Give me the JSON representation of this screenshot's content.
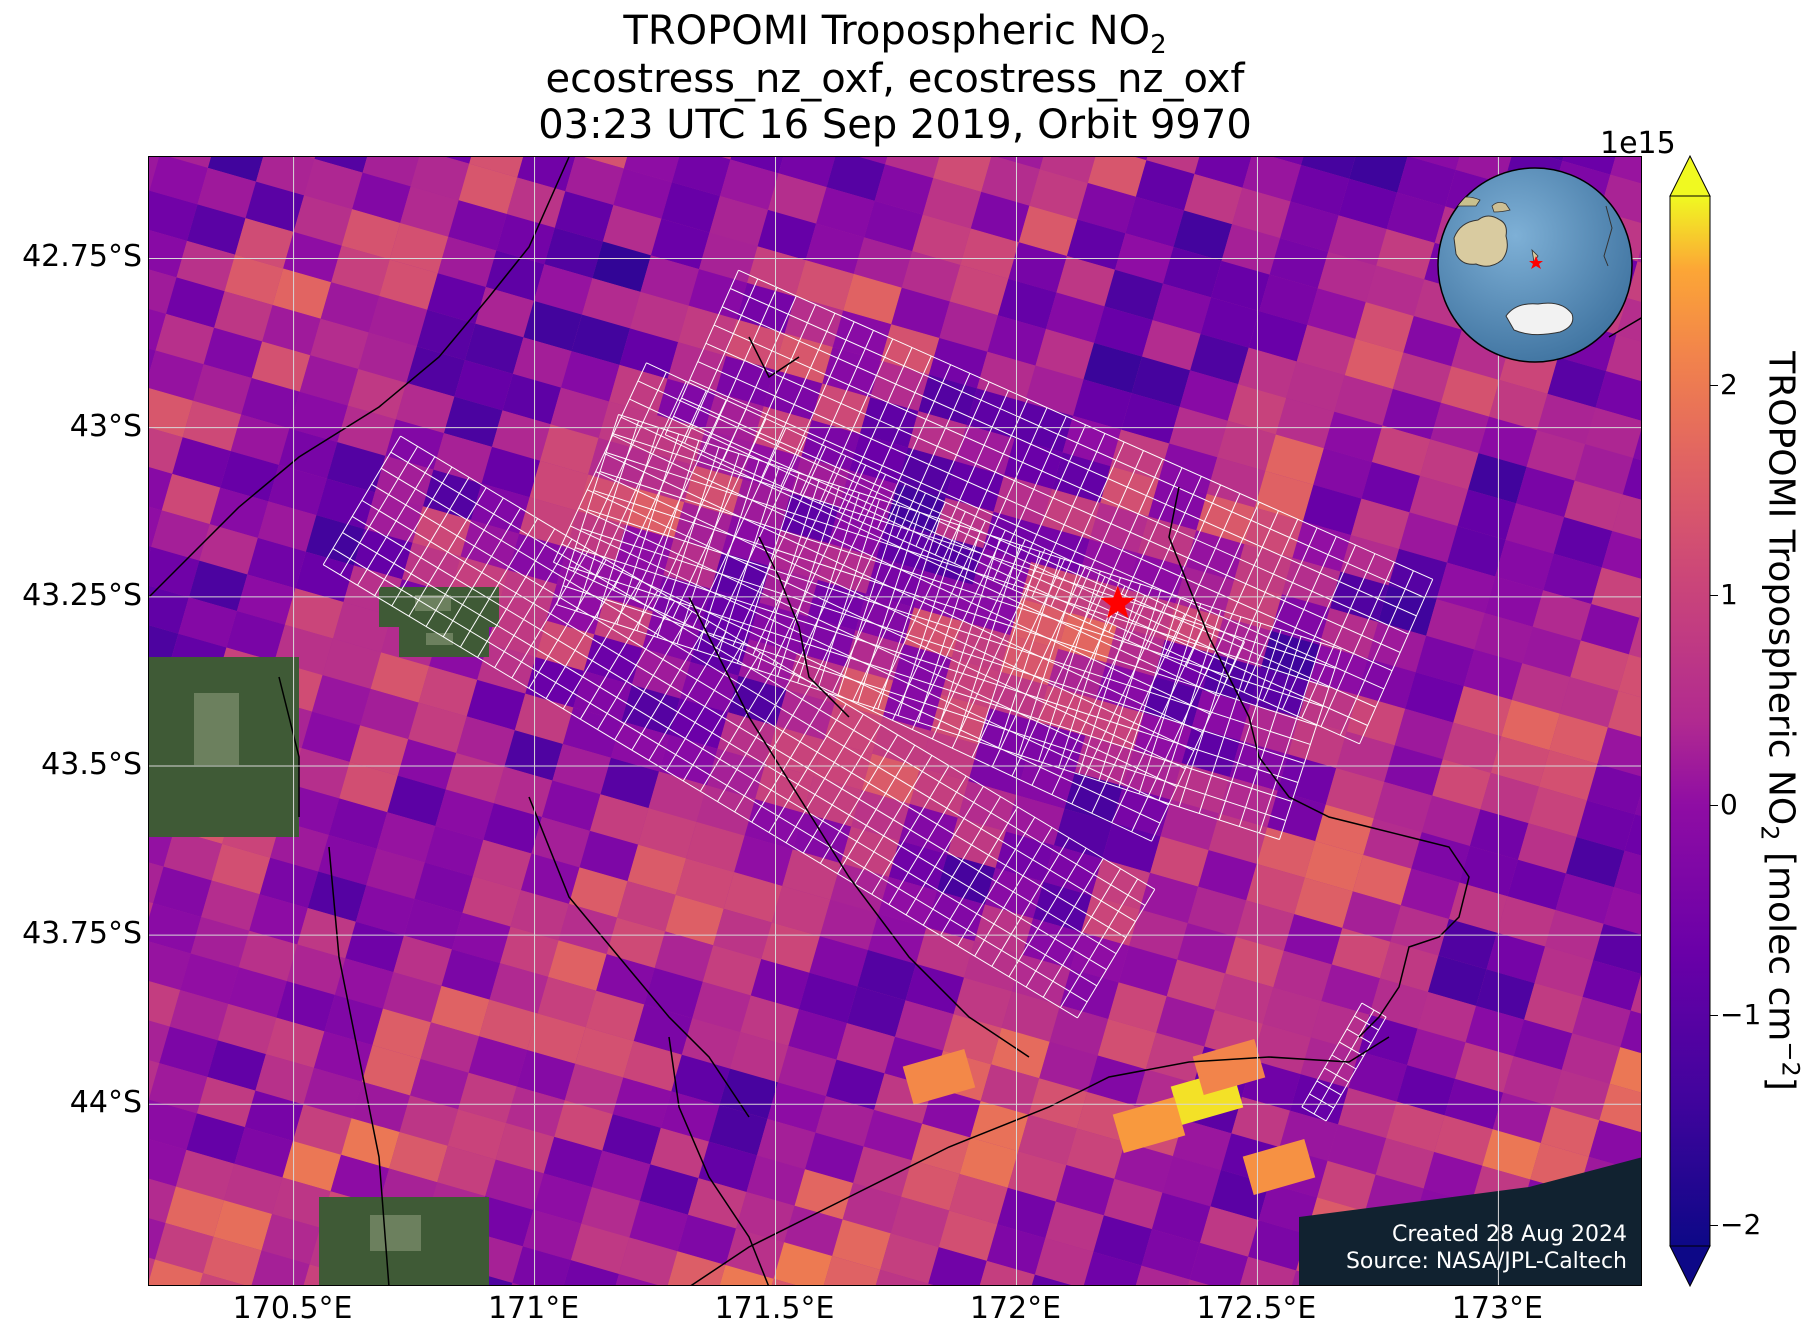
{
  "title": {
    "line1_prefix": "TROPOMI Tropospheric NO",
    "line1_sub": "2",
    "line2": "ecostress_nz_oxf, ecostress_nz_oxf",
    "line3": "03:23 UTC 16 Sep 2019, Orbit 9970"
  },
  "map": {
    "lon_range": [
      170.2,
      173.3
    ],
    "lat_range": [
      -44.27,
      -42.6
    ],
    "lat_ticks": [
      {
        "value": -42.75,
        "label": "42.75°S"
      },
      {
        "value": -43.0,
        "label": "43°S"
      },
      {
        "value": -43.25,
        "label": "43.25°S"
      },
      {
        "value": -43.5,
        "label": "43.5°S"
      },
      {
        "value": -43.75,
        "label": "43.75°S"
      },
      {
        "value": -44.0,
        "label": "44°S"
      }
    ],
    "lon_ticks": [
      {
        "value": 170.5,
        "label": "170.5°E"
      },
      {
        "value": 171.0,
        "label": "171°E"
      },
      {
        "value": 171.5,
        "label": "171.5°E"
      },
      {
        "value": 172.0,
        "label": "172°E"
      },
      {
        "value": 172.5,
        "label": "172.5°E"
      },
      {
        "value": 173.0,
        "label": "173°E"
      }
    ],
    "target_marker": {
      "lon": 172.21,
      "lat": -43.26,
      "color": "#ff0000",
      "icon": "star-icon"
    },
    "credit_line1": "Created 28 Aug 2024",
    "credit_line2": "Source: NASA/JPL-Caltech"
  },
  "colorbar": {
    "colormap": "plasma",
    "multiplier": "1e15",
    "min": -2.1,
    "max": 2.9,
    "ticks": [
      {
        "value": 2,
        "label": "2"
      },
      {
        "value": 1,
        "label": "1"
      },
      {
        "value": 0,
        "label": "0"
      },
      {
        "value": -1,
        "label": "−1"
      },
      {
        "value": -2,
        "label": "−2"
      }
    ],
    "label_prefix": "TROPOMI Tropospheric NO",
    "label_sub": "2",
    "label_suffix": " [molec cm",
    "label_sup": "−2",
    "label_end": "]"
  },
  "inset_globe": {
    "icon": "globe-icon",
    "ocean_color": "#4f86b4",
    "land_color": "#d9cba0",
    "marker_color": "#ff0000"
  },
  "colors": {
    "grid": "#d8d8d8",
    "swath": "#ffffff",
    "coast": "#000000"
  }
}
